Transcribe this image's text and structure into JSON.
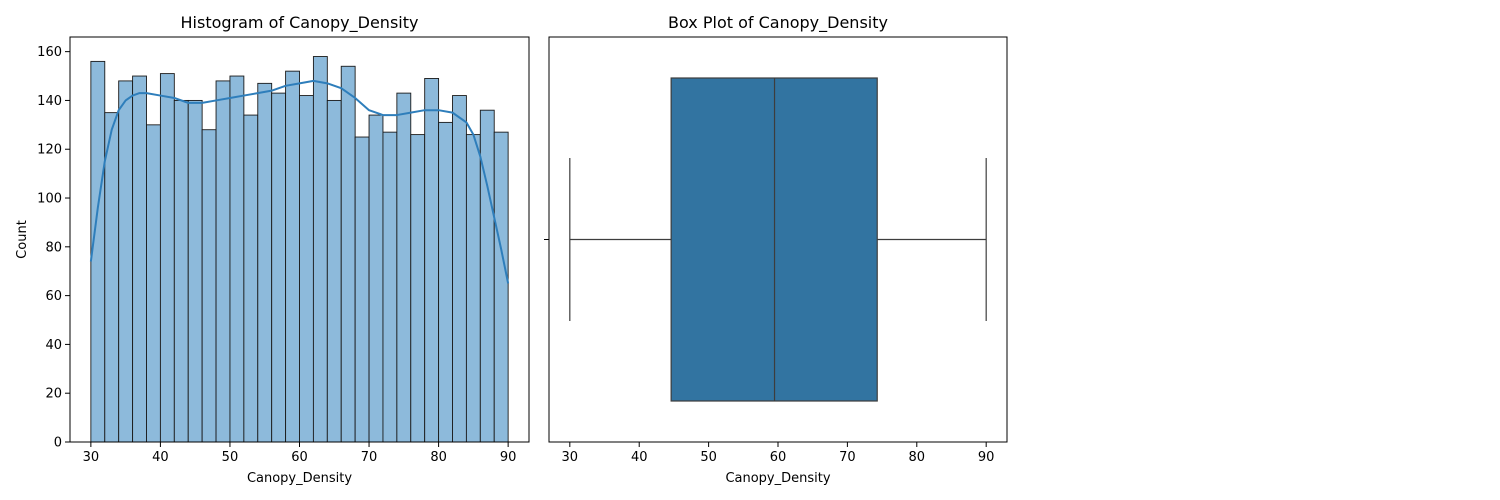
{
  "chart_data": [
    {
      "type": "bar",
      "subtype": "histogram",
      "title": "Histogram of Canopy_Density",
      "xlabel": "Canopy_Density",
      "ylabel": "Count",
      "xlim": [
        27,
        93
      ],
      "ylim": [
        0,
        166
      ],
      "xticks": [
        30,
        40,
        50,
        60,
        70,
        80,
        90
      ],
      "yticks": [
        0,
        20,
        40,
        60,
        80,
        100,
        120,
        140,
        160
      ],
      "bin_start": 30,
      "bin_width": 2,
      "values": [
        156,
        135,
        148,
        150,
        130,
        151,
        140,
        140,
        128,
        148,
        150,
        134,
        147,
        143,
        152,
        142,
        158,
        140,
        154,
        125,
        134,
        127,
        143,
        126,
        149,
        131,
        142,
        126,
        136,
        127
      ],
      "kde": {
        "x": [
          30,
          31,
          32,
          33,
          34,
          35,
          36,
          37,
          38,
          40,
          42,
          44,
          46,
          48,
          50,
          52,
          54,
          56,
          58,
          60,
          62,
          64,
          66,
          68,
          70,
          72,
          74,
          76,
          78,
          80,
          82,
          84,
          85,
          86,
          87,
          88,
          89,
          90
        ],
        "y": [
          74,
          96,
          115,
          128,
          136,
          140,
          142,
          143,
          143,
          142,
          141,
          139,
          139,
          140,
          141,
          142,
          143,
          144,
          146,
          147,
          148,
          147,
          145,
          141,
          136,
          134,
          134,
          135,
          136,
          136,
          135,
          131,
          126,
          117,
          105,
          92,
          79,
          65
        ]
      },
      "colors": {
        "bar_fill": "#8dbadb",
        "bar_edge": "#1a1a1a",
        "kde_line": "#2e7ebb"
      },
      "grid": false
    },
    {
      "type": "box",
      "title": "Box Plot of Canopy_Density",
      "xlabel": "Canopy_Density",
      "xlim": [
        27,
        93
      ],
      "xticks": [
        30,
        40,
        50,
        60,
        70,
        80,
        90
      ],
      "whisker_low": 30,
      "q1": 44.6,
      "median": 59.5,
      "q3": 74.3,
      "whisker_high": 90,
      "colors": {
        "box_fill": "#3274a1",
        "line": "#3d3d3d"
      },
      "grid": false
    }
  ]
}
